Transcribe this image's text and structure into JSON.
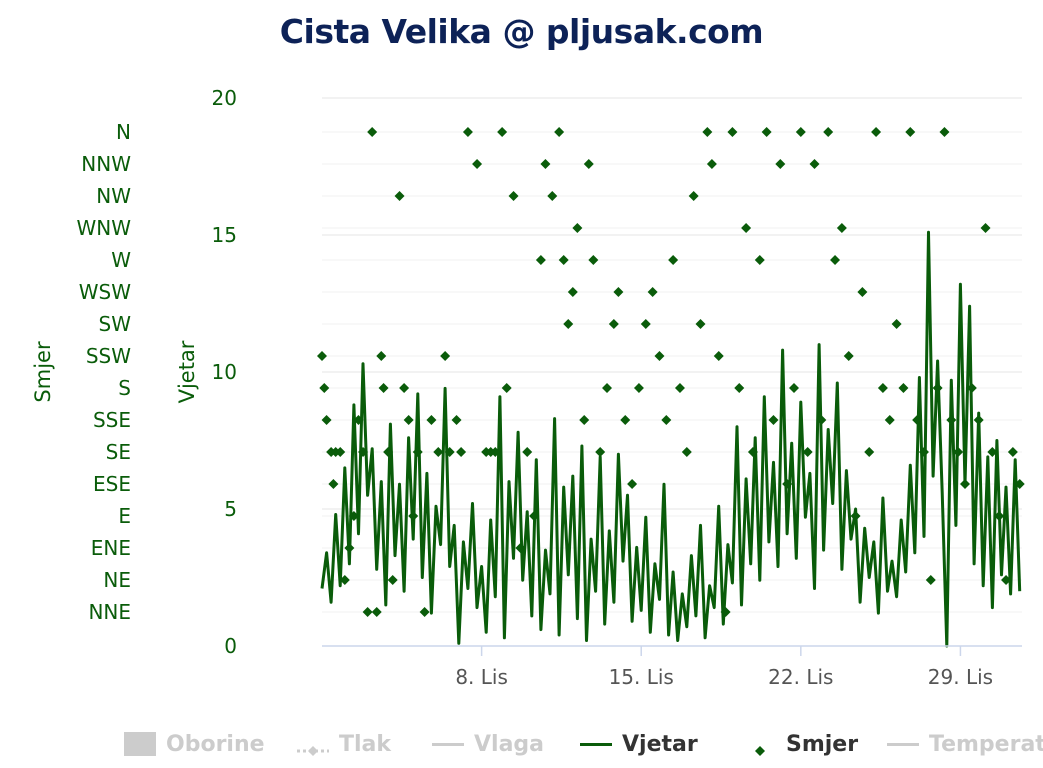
{
  "chart_data": {
    "type": "line",
    "title": "Cista Velika @ pljusak.com",
    "x_axis": {
      "ticks": [
        "8. Lis",
        "15. Lis",
        "22. Lis",
        "29. Lis"
      ],
      "start_day": 1,
      "end_day": 31.7
    },
    "y_axis_wind": {
      "label": "Vjetar",
      "min": 0,
      "max": 20,
      "ticks": [
        0,
        5,
        10,
        15,
        20
      ]
    },
    "y_axis_direction": {
      "label": "Smjer",
      "categories": [
        "NNE",
        "NE",
        "ENE",
        "E",
        "ESE",
        "SE",
        "SSE",
        "S",
        "SSW",
        "SW",
        "WSW",
        "W",
        "WNW",
        "NW",
        "NNW",
        "N"
      ]
    },
    "legend": [
      {
        "name": "Oborine",
        "active": false,
        "symbol": "rect"
      },
      {
        "name": "Tlak",
        "active": false,
        "symbol": "dashdiamond"
      },
      {
        "name": "Vlaga",
        "active": false,
        "symbol": "line"
      },
      {
        "name": "Vjetar",
        "active": true,
        "symbol": "line"
      },
      {
        "name": "Smjer",
        "active": true,
        "symbol": "diamond"
      },
      {
        "name": "Temperatu",
        "active": false,
        "symbol": "line"
      }
    ],
    "series": [
      {
        "name": "Vjetar",
        "color": "#0a5c0a",
        "points": [
          [
            1.0,
            2.1
          ],
          [
            1.2,
            3.4
          ],
          [
            1.4,
            1.6
          ],
          [
            1.6,
            4.8
          ],
          [
            1.8,
            2.2
          ],
          [
            2.0,
            6.5
          ],
          [
            2.2,
            3.0
          ],
          [
            2.4,
            8.8
          ],
          [
            2.6,
            4.1
          ],
          [
            2.8,
            10.3
          ],
          [
            3.0,
            5.5
          ],
          [
            3.2,
            7.2
          ],
          [
            3.4,
            2.8
          ],
          [
            3.6,
            6.0
          ],
          [
            3.8,
            1.5
          ],
          [
            4.0,
            8.1
          ],
          [
            4.2,
            3.3
          ],
          [
            4.4,
            5.9
          ],
          [
            4.6,
            2.0
          ],
          [
            4.8,
            7.6
          ],
          [
            5.0,
            3.9
          ],
          [
            5.2,
            9.2
          ],
          [
            5.4,
            2.5
          ],
          [
            5.6,
            6.3
          ],
          [
            5.8,
            1.2
          ],
          [
            6.0,
            5.1
          ],
          [
            6.2,
            3.7
          ],
          [
            6.4,
            9.4
          ],
          [
            6.6,
            2.9
          ],
          [
            6.8,
            4.4
          ],
          [
            7.0,
            0.1
          ],
          [
            7.2,
            3.8
          ],
          [
            7.4,
            2.1
          ],
          [
            7.6,
            5.2
          ],
          [
            7.8,
            1.4
          ],
          [
            8.0,
            2.9
          ],
          [
            8.2,
            0.5
          ],
          [
            8.4,
            4.6
          ],
          [
            8.6,
            1.8
          ],
          [
            8.8,
            9.1
          ],
          [
            9.0,
            0.3
          ],
          [
            9.2,
            6.0
          ],
          [
            9.4,
            3.2
          ],
          [
            9.6,
            7.8
          ],
          [
            9.8,
            2.4
          ],
          [
            10.0,
            4.9
          ],
          [
            10.2,
            1.1
          ],
          [
            10.4,
            6.8
          ],
          [
            10.6,
            0.6
          ],
          [
            10.8,
            3.5
          ],
          [
            11.0,
            1.9
          ],
          [
            11.2,
            8.3
          ],
          [
            11.4,
            0.4
          ],
          [
            11.6,
            5.8
          ],
          [
            11.8,
            2.6
          ],
          [
            12.0,
            6.2
          ],
          [
            12.2,
            1.0
          ],
          [
            12.4,
            7.3
          ],
          [
            12.6,
            0.2
          ],
          [
            12.8,
            3.9
          ],
          [
            13.0,
            2.0
          ],
          [
            13.2,
            6.9
          ],
          [
            13.4,
            0.8
          ],
          [
            13.6,
            4.2
          ],
          [
            13.8,
            1.6
          ],
          [
            14.0,
            7.0
          ],
          [
            14.2,
            3.1
          ],
          [
            14.4,
            5.5
          ],
          [
            14.6,
            0.9
          ],
          [
            14.8,
            3.6
          ],
          [
            15.0,
            1.3
          ],
          [
            15.2,
            4.7
          ],
          [
            15.4,
            0.5
          ],
          [
            15.6,
            3.0
          ],
          [
            15.8,
            1.7
          ],
          [
            16.0,
            5.9
          ],
          [
            16.2,
            0.4
          ],
          [
            16.4,
            2.7
          ],
          [
            16.6,
            0.2
          ],
          [
            16.8,
            1.9
          ],
          [
            17.0,
            0.7
          ],
          [
            17.2,
            3.3
          ],
          [
            17.4,
            1.1
          ],
          [
            17.6,
            4.4
          ],
          [
            17.8,
            0.3
          ],
          [
            18.0,
            2.2
          ],
          [
            18.2,
            1.4
          ],
          [
            18.4,
            5.1
          ],
          [
            18.6,
            0.8
          ],
          [
            18.8,
            3.7
          ],
          [
            19.0,
            2.3
          ],
          [
            19.2,
            8.0
          ],
          [
            19.4,
            1.5
          ],
          [
            19.6,
            6.1
          ],
          [
            19.8,
            3.0
          ],
          [
            20.0,
            7.6
          ],
          [
            20.2,
            2.4
          ],
          [
            20.4,
            9.1
          ],
          [
            20.6,
            3.8
          ],
          [
            20.8,
            6.7
          ],
          [
            21.0,
            2.9
          ],
          [
            21.2,
            10.8
          ],
          [
            21.4,
            4.1
          ],
          [
            21.6,
            7.4
          ],
          [
            21.8,
            3.2
          ],
          [
            22.0,
            8.9
          ],
          [
            22.2,
            4.7
          ],
          [
            22.4,
            6.3
          ],
          [
            22.6,
            2.1
          ],
          [
            22.8,
            11.0
          ],
          [
            23.0,
            3.5
          ],
          [
            23.2,
            7.9
          ],
          [
            23.4,
            5.2
          ],
          [
            23.6,
            9.6
          ],
          [
            23.8,
            2.8
          ],
          [
            24.0,
            6.4
          ],
          [
            24.2,
            3.9
          ],
          [
            24.4,
            5.0
          ],
          [
            24.6,
            1.6
          ],
          [
            24.8,
            4.3
          ],
          [
            25.0,
            2.5
          ],
          [
            25.2,
            3.8
          ],
          [
            25.4,
            1.2
          ],
          [
            25.6,
            5.4
          ],
          [
            25.8,
            2.0
          ],
          [
            26.0,
            3.1
          ],
          [
            26.2,
            1.8
          ],
          [
            26.4,
            4.6
          ],
          [
            26.6,
            2.7
          ],
          [
            26.8,
            6.6
          ],
          [
            27.0,
            3.4
          ],
          [
            27.2,
            9.8
          ],
          [
            27.4,
            4.0
          ],
          [
            27.6,
            15.1
          ],
          [
            27.8,
            6.2
          ],
          [
            28.0,
            10.4
          ],
          [
            28.2,
            5.6
          ],
          [
            28.4,
            0.0
          ],
          [
            28.6,
            9.7
          ],
          [
            28.8,
            4.4
          ],
          [
            29.0,
            13.2
          ],
          [
            29.2,
            5.9
          ],
          [
            29.4,
            12.4
          ],
          [
            29.6,
            3.0
          ],
          [
            29.8,
            8.5
          ],
          [
            30.0,
            2.2
          ],
          [
            30.2,
            6.9
          ],
          [
            30.4,
            1.4
          ],
          [
            30.6,
            7.5
          ],
          [
            30.8,
            2.6
          ],
          [
            31.0,
            5.8
          ],
          [
            31.2,
            1.9
          ],
          [
            31.4,
            6.8
          ],
          [
            31.6,
            2.0
          ]
        ]
      },
      {
        "name": "Smjer",
        "color": "#0a5c0a",
        "points": [
          [
            1.0,
            "SSW"
          ],
          [
            1.1,
            "S"
          ],
          [
            1.2,
            "SSE"
          ],
          [
            1.4,
            "SE"
          ],
          [
            1.5,
            "ESE"
          ],
          [
            1.6,
            "SE"
          ],
          [
            1.8,
            "SE"
          ],
          [
            2.0,
            "NE"
          ],
          [
            2.2,
            "ENE"
          ],
          [
            2.4,
            "E"
          ],
          [
            2.6,
            "SSE"
          ],
          [
            2.8,
            "SE"
          ],
          [
            3.0,
            "NNE"
          ],
          [
            3.2,
            "N"
          ],
          [
            3.4,
            "NNE"
          ],
          [
            3.6,
            "SSW"
          ],
          [
            3.7,
            "S"
          ],
          [
            3.9,
            "SE"
          ],
          [
            4.1,
            "NE"
          ],
          [
            4.4,
            "NW"
          ],
          [
            4.6,
            "S"
          ],
          [
            4.8,
            "SSE"
          ],
          [
            5.0,
            "E"
          ],
          [
            5.2,
            "SE"
          ],
          [
            5.5,
            "NNE"
          ],
          [
            5.8,
            "SSE"
          ],
          [
            6.1,
            "SE"
          ],
          [
            6.4,
            "SSW"
          ],
          [
            6.6,
            "SE"
          ],
          [
            6.9,
            "SSE"
          ],
          [
            7.1,
            "SE"
          ],
          [
            7.4,
            "N"
          ],
          [
            7.8,
            "NNW"
          ],
          [
            8.2,
            "SE"
          ],
          [
            8.4,
            "SE"
          ],
          [
            8.6,
            "SE"
          ],
          [
            8.9,
            "N"
          ],
          [
            9.1,
            "S"
          ],
          [
            9.4,
            "NW"
          ],
          [
            9.7,
            "ENE"
          ],
          [
            10.0,
            "SE"
          ],
          [
            10.3,
            "E"
          ],
          [
            10.6,
            "W"
          ],
          [
            10.8,
            "NNW"
          ],
          [
            11.1,
            "NW"
          ],
          [
            11.4,
            "N"
          ],
          [
            11.6,
            "W"
          ],
          [
            11.8,
            "SW"
          ],
          [
            12.0,
            "WSW"
          ],
          [
            12.2,
            "WNW"
          ],
          [
            12.5,
            "SSE"
          ],
          [
            12.7,
            "NNW"
          ],
          [
            12.9,
            "W"
          ],
          [
            13.2,
            "SE"
          ],
          [
            13.5,
            "S"
          ],
          [
            13.8,
            "SW"
          ],
          [
            14.0,
            "WSW"
          ],
          [
            14.3,
            "SSE"
          ],
          [
            14.6,
            "ESE"
          ],
          [
            14.9,
            "S"
          ],
          [
            15.2,
            "SW"
          ],
          [
            15.5,
            "WSW"
          ],
          [
            15.8,
            "SSW"
          ],
          [
            16.1,
            "SSE"
          ],
          [
            16.4,
            "W"
          ],
          [
            16.7,
            "S"
          ],
          [
            17.0,
            "SE"
          ],
          [
            17.3,
            "NW"
          ],
          [
            17.6,
            "SW"
          ],
          [
            17.9,
            "N"
          ],
          [
            18.1,
            "NNW"
          ],
          [
            18.4,
            "SSW"
          ],
          [
            18.7,
            "NNE"
          ],
          [
            19.0,
            "N"
          ],
          [
            19.3,
            "S"
          ],
          [
            19.6,
            "WNW"
          ],
          [
            19.9,
            "SE"
          ],
          [
            20.2,
            "W"
          ],
          [
            20.5,
            "N"
          ],
          [
            20.8,
            "SSE"
          ],
          [
            21.1,
            "NNW"
          ],
          [
            21.4,
            "ESE"
          ],
          [
            21.7,
            "S"
          ],
          [
            22.0,
            "N"
          ],
          [
            22.3,
            "SE"
          ],
          [
            22.6,
            "NNW"
          ],
          [
            22.9,
            "SSE"
          ],
          [
            23.2,
            "N"
          ],
          [
            23.5,
            "W"
          ],
          [
            23.8,
            "WNW"
          ],
          [
            24.1,
            "SSW"
          ],
          [
            24.4,
            "E"
          ],
          [
            24.7,
            "WSW"
          ],
          [
            25.0,
            "SE"
          ],
          [
            25.3,
            "N"
          ],
          [
            25.6,
            "S"
          ],
          [
            25.9,
            "SSE"
          ],
          [
            26.2,
            "SW"
          ],
          [
            26.5,
            "S"
          ],
          [
            26.8,
            "N"
          ],
          [
            27.1,
            "SSE"
          ],
          [
            27.4,
            "SE"
          ],
          [
            27.7,
            "NE"
          ],
          [
            28.0,
            "S"
          ],
          [
            28.3,
            "N"
          ],
          [
            28.6,
            "SSE"
          ],
          [
            28.9,
            "SE"
          ],
          [
            29.2,
            "ESE"
          ],
          [
            29.5,
            "S"
          ],
          [
            29.8,
            "SSE"
          ],
          [
            30.1,
            "WNW"
          ],
          [
            30.4,
            "SE"
          ],
          [
            30.7,
            "E"
          ],
          [
            31.0,
            "NE"
          ],
          [
            31.3,
            "SE"
          ],
          [
            31.6,
            "ESE"
          ]
        ]
      }
    ]
  }
}
